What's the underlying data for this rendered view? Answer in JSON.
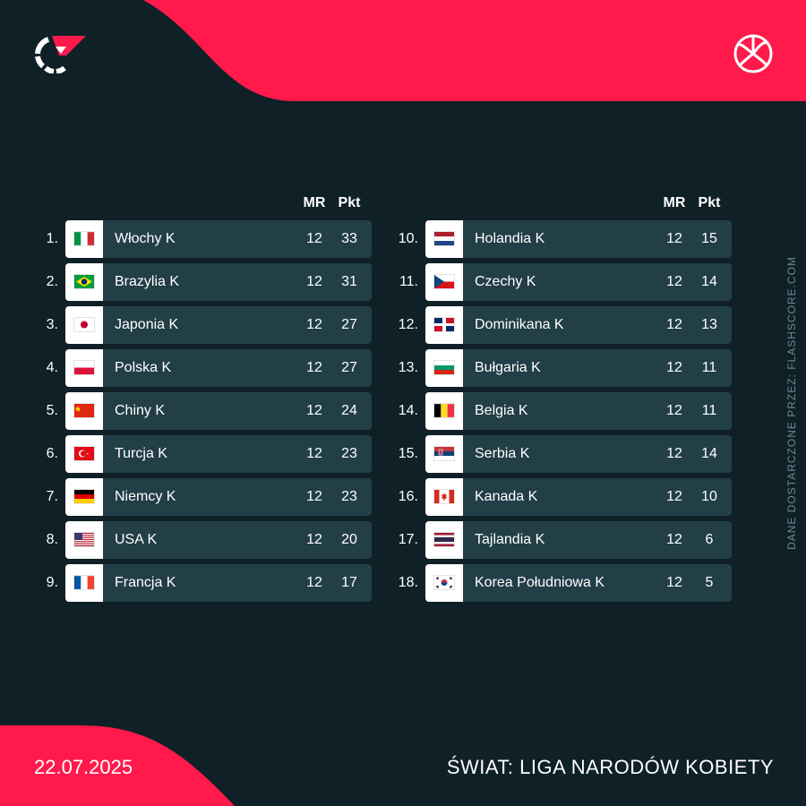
{
  "colors": {
    "background": "#0f2027",
    "accent": "#ff1a4b",
    "row": "#223e47"
  },
  "header": {
    "logo_icon": "flashscore-logo-icon",
    "sport_icon": "volleyball-icon"
  },
  "columns": {
    "mr": "MR",
    "pkt": "Pkt"
  },
  "standings_left": [
    {
      "rank": "1.",
      "team": "Włochy K",
      "mr": "12",
      "pkt": "33",
      "flag": "italy"
    },
    {
      "rank": "2.",
      "team": "Brazylia K",
      "mr": "12",
      "pkt": "31",
      "flag": "brazil"
    },
    {
      "rank": "3.",
      "team": "Japonia K",
      "mr": "12",
      "pkt": "27",
      "flag": "japan"
    },
    {
      "rank": "4.",
      "team": "Polska K",
      "mr": "12",
      "pkt": "27",
      "flag": "poland"
    },
    {
      "rank": "5.",
      "team": "Chiny K",
      "mr": "12",
      "pkt": "24",
      "flag": "china"
    },
    {
      "rank": "6.",
      "team": "Turcja K",
      "mr": "12",
      "pkt": "23",
      "flag": "turkey"
    },
    {
      "rank": "7.",
      "team": "Niemcy K",
      "mr": "12",
      "pkt": "23",
      "flag": "germany"
    },
    {
      "rank": "8.",
      "team": "USA K",
      "mr": "12",
      "pkt": "20",
      "flag": "usa"
    },
    {
      "rank": "9.",
      "team": "Francja K",
      "mr": "12",
      "pkt": "17",
      "flag": "france"
    }
  ],
  "standings_right": [
    {
      "rank": "10.",
      "team": "Holandia K",
      "mr": "12",
      "pkt": "15",
      "flag": "netherlands"
    },
    {
      "rank": "11.",
      "team": "Czechy K",
      "mr": "12",
      "pkt": "14",
      "flag": "czechia"
    },
    {
      "rank": "12.",
      "team": "Dominikana K",
      "mr": "12",
      "pkt": "13",
      "flag": "dominican-republic"
    },
    {
      "rank": "13.",
      "team": "Bułgaria K",
      "mr": "12",
      "pkt": "11",
      "flag": "bulgaria"
    },
    {
      "rank": "14.",
      "team": "Belgia K",
      "mr": "12",
      "pkt": "11",
      "flag": "belgium"
    },
    {
      "rank": "15.",
      "team": "Serbia K",
      "mr": "12",
      "pkt": "14",
      "flag": "serbia"
    },
    {
      "rank": "16.",
      "team": "Kanada K",
      "mr": "12",
      "pkt": "10",
      "flag": "canada"
    },
    {
      "rank": "17.",
      "team": "Tajlandia K",
      "mr": "12",
      "pkt": "6",
      "flag": "thailand"
    },
    {
      "rank": "18.",
      "team": "Korea Południowa K",
      "mr": "12",
      "pkt": "5",
      "flag": "south-korea"
    }
  ],
  "side_credit": "DANE DOSTARCZONE PRZEZ: FLASHSCORE.COM",
  "footer": {
    "date": "22.07.2025",
    "title": "ŚWIAT: LIGA NARODÓW KOBIETY"
  }
}
